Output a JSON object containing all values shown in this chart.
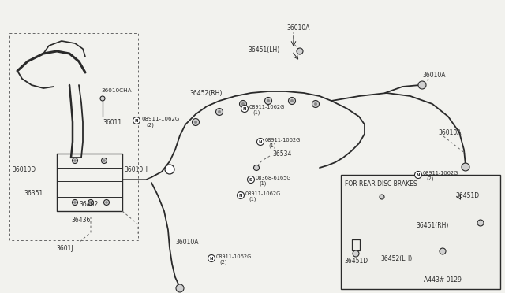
{
  "bg_color": "#f2f2ee",
  "line_color": "#2a2a2a",
  "diagram_code": "A443# 0129",
  "parts": {
    "36010A_top": "36010A",
    "36010A_right1": "36010A",
    "36010A_right2": "36010A",
    "36010A_lower": "36010A",
    "36010D": "36010D",
    "36010H": "36010H",
    "36010CHA": "36010CHA",
    "36011": "36011",
    "36351": "36351",
    "36436": "36436",
    "36402": "36402",
    "36010J": "3601J",
    "36452RH": "36452(RH)",
    "36451LH": "36451(LH)",
    "36534": "36534",
    "N08911_2_left": "N08911-1062G\n(2)",
    "N08911_1_upper": "N08911-1062G\n(1)",
    "N08911_1_mid": "N08911-1062G\n(1)",
    "N08911_2_lower": "N08911-1062G\n(2)",
    "N08911_2_right": "N08911-1062G\n(2)",
    "S08368": "S08368-6165G\n(1)",
    "36451RH": "36451(RH)",
    "36452LH": "36452(LH)",
    "36451D_top": "36451D",
    "36451D_bot": "36451D",
    "rear_disc_label": "FOR REAR DISC BRAKES"
  },
  "colors": {
    "cable": "#2a2a2a",
    "dash": "#666666",
    "bolt_fill": "#d0d0d0",
    "bolt_outline": "#2a2a2a",
    "N_fill": "#ffffff",
    "S_fill": "#ffffff",
    "inset_bg": "#eeeeea",
    "inset_border": "#2a2a2a"
  }
}
